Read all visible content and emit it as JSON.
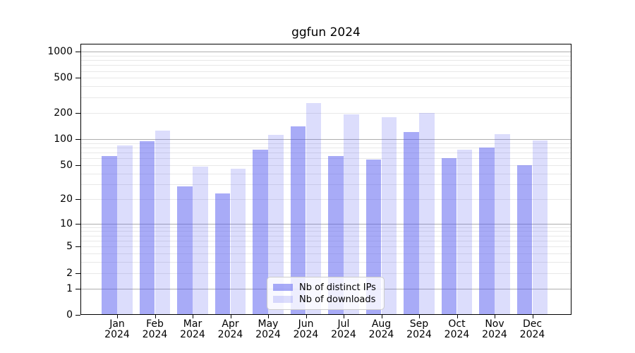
{
  "title": "ggfun 2024",
  "legend": {
    "items": [
      {
        "label": "Nb of distinct IPs",
        "fill": "rgba(81,87,239,0.5)"
      },
      {
        "label": "Nb of downloads",
        "fill": "rgba(81,87,239,0.2)"
      }
    ]
  },
  "axes": {
    "y_tick_values": [
      0,
      1,
      2,
      5,
      10,
      20,
      50,
      100,
      200,
      500,
      1000
    ],
    "y_tick_labels": [
      "0",
      "1",
      "2",
      "5",
      "10",
      "20",
      "50",
      "100",
      "200",
      "500",
      "1000"
    ],
    "y_major_gridlines": [
      1,
      10,
      100,
      1000
    ],
    "x_tick_months": [
      "Jan",
      "Feb",
      "Mar",
      "Apr",
      "May",
      "Jun",
      "Jul",
      "Aug",
      "Sep",
      "Oct",
      "Nov",
      "Dec"
    ],
    "x_tick_year": "2024"
  },
  "chart_data": {
    "type": "bar",
    "title": "ggfun 2024",
    "categories": [
      "Jan 2024",
      "Feb 2024",
      "Mar 2024",
      "Apr 2024",
      "May 2024",
      "Jun 2024",
      "Jul 2024",
      "Aug 2024",
      "Sep 2024",
      "Oct 2024",
      "Nov 2024",
      "Dec 2024"
    ],
    "series": [
      {
        "name": "Nb of distinct IPs",
        "fill": "rgba(81,87,239,0.5)",
        "values": [
          64,
          95,
          28,
          23,
          76,
          140,
          64,
          58,
          121,
          60,
          80,
          50
        ]
      },
      {
        "name": "Nb of downloads",
        "fill": "rgba(81,87,239,0.2)",
        "values": [
          85,
          125,
          48,
          45,
          112,
          256,
          192,
          178,
          200,
          75,
          114,
          97
        ]
      }
    ],
    "yscale": "log10(1+x)",
    "ylim": [
      0,
      1230
    ],
    "yticks": [
      0,
      1,
      2,
      5,
      10,
      20,
      50,
      100,
      200,
      500,
      1000
    ],
    "grid": "horizontal-only",
    "legend_position": "lower center inside plot"
  }
}
